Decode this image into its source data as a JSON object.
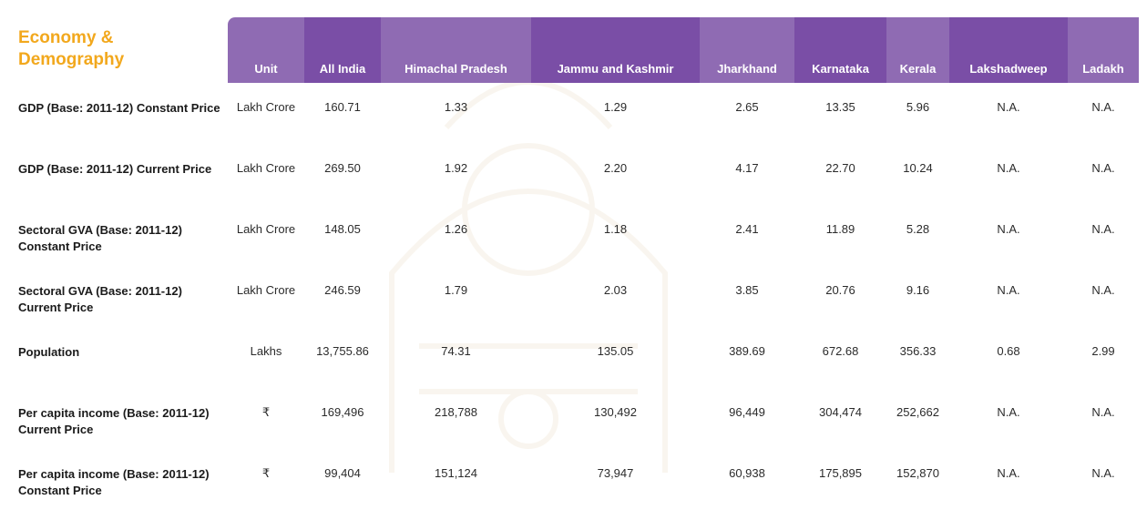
{
  "heading": "Economy & Demography",
  "columns": [
    "Unit",
    "All India",
    "Himachal Pradesh",
    "Jammu and Kashmir",
    "Jharkhand",
    "Karnataka",
    "Kerala",
    "Lakshadweep",
    "Ladakh"
  ],
  "rows": [
    {
      "indicator": "GDP (Base: 2011-12) Constant Price",
      "values": [
        "Lakh Crore",
        "160.71",
        "1.33",
        "1.29",
        "2.65",
        "13.35",
        "5.96",
        "N.A.",
        "N.A."
      ]
    },
    {
      "indicator": "GDP (Base: 2011-12) Current Price",
      "values": [
        "Lakh Crore",
        "269.50",
        "1.92",
        "2.20",
        "4.17",
        "22.70",
        "10.24",
        "N.A.",
        "N.A."
      ]
    },
    {
      "indicator": "Sectoral GVA (Base: 2011-12) Constant Price",
      "values": [
        "Lakh Crore",
        "148.05",
        "1.26",
        "1.18",
        "2.41",
        "11.89",
        "5.28",
        "N.A.",
        "N.A."
      ]
    },
    {
      "indicator": "Sectoral GVA (Base: 2011-12) Current Price",
      "values": [
        "Lakh Crore",
        "246.59",
        "1.79",
        "2.03",
        "3.85",
        "20.76",
        "9.16",
        "N.A.",
        "N.A."
      ]
    },
    {
      "indicator": "Population",
      "values": [
        "Lakhs",
        "13,755.86",
        "74.31",
        "135.05",
        "389.69",
        "672.68",
        "356.33",
        "0.68",
        "2.99"
      ]
    },
    {
      "indicator": "Per capita income (Base: 2011-12) Current Price",
      "values": [
        "₹",
        "169,496",
        "218,788",
        "130,492",
        "96,449",
        "304,474",
        "252,662",
        "N.A.",
        "N.A."
      ]
    },
    {
      "indicator": "Per capita income (Base: 2011-12) Constant Price",
      "values": [
        "₹",
        "99,404",
        "151,124",
        "73,947",
        "60,938",
        "175,895",
        "152,870",
        "N.A.",
        "N.A."
      ]
    }
  ]
}
